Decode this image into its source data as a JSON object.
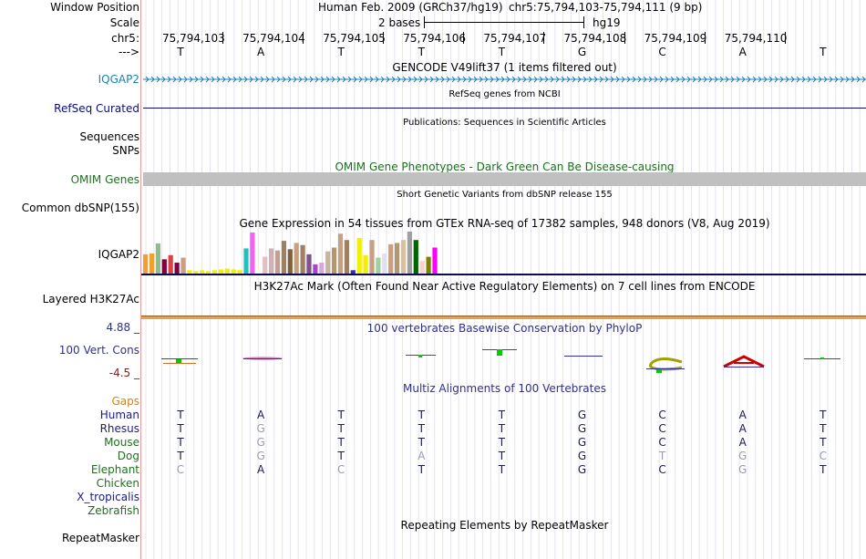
{
  "colors": {
    "conservation": "#2f2f8f",
    "omim": "#1f6f1f",
    "gene": "#1f80b0",
    "refseq": "#0c0c78",
    "bar_yellow": "#e6e600",
    "gaps": "#e08000",
    "mismatch": "#9a9ab8"
  },
  "labels": {
    "window_position": "Window Position",
    "scale": "Scale",
    "chr": "chr5:",
    "arrow": "--->",
    "iqgap2": "IQGAP2",
    "refseq": "RefSeq Curated",
    "sequences": "Sequences",
    "snps": "SNPs",
    "omim": "OMIM Genes",
    "dbsnp": "Common dbSNP(155)",
    "gtex": "IQGAP2",
    "h3k27ac": "Layered H3K27Ac",
    "cons_max": "4.88 _",
    "cons_name": "100 Vert. Cons",
    "cons_min": "-4.5 _",
    "gaps": "Gaps",
    "repeatmasker": "RepeatMasker"
  },
  "header": {
    "assembly": "Human Feb. 2009 (GRCh37/hg19)",
    "position": "chr5:75,794,103-75,794,111 (9 bp)",
    "scale_text": "2 bases",
    "scale_db": "hg19"
  },
  "coords": [
    "75,794,103",
    "75,794,104",
    "75,794,105",
    "75,794,106",
    "75,794,107",
    "75,794,108",
    "75,794,109",
    "75,794,110"
  ],
  "sequence": [
    "T",
    "A",
    "T",
    "T",
    "T",
    "G",
    "C",
    "A",
    "T"
  ],
  "track_titles": {
    "gencode": "GENCODE V49lift37 (1 items filtered out)",
    "refseq": "RefSeq genes from NCBI",
    "publications": "Publications: Sequences in Scientific Articles",
    "omim": "OMIM Gene Phenotypes - Dark Green Can Be Disease-causing",
    "dbsnp": "Short Genetic Variants from dbSNP release 155",
    "gtex": "Gene Expression in 54 tissues from GTEx RNA-seq of 17382 samples, 948 donors (V8, Aug 2019)",
    "h3k27ac": "H3K27Ac Mark (Often Found Near Active Regulatory Elements) on 7 cell lines from ENCODE",
    "phylop": "100 vertebrates Basewise Conservation by PhyloP",
    "multiz": "Multiz Alignments of 100 Vertebrates",
    "repeatmasker": "Repeating Elements by RepeatMasker"
  },
  "gtex_bars": [
    {
      "color": "#f0a030",
      "value": 0.46
    },
    {
      "color": "#f0a030",
      "value": 0.48
    },
    {
      "color": "#8fbc8f",
      "value": 0.72
    },
    {
      "color": "#800040",
      "value": 0.34
    },
    {
      "color": "#e04040",
      "value": 0.44
    },
    {
      "color": "#800040",
      "value": 0.26
    },
    {
      "color": "#c8a080",
      "value": 0.38
    },
    {
      "color": "#f0f000",
      "value": 0.08
    },
    {
      "color": "#f0f000",
      "value": 0.06
    },
    {
      "color": "#f0f000",
      "value": 0.08
    },
    {
      "color": "#f0f000",
      "value": 0.06
    },
    {
      "color": "#f0f000",
      "value": 0.08
    },
    {
      "color": "#f0f000",
      "value": 0.1
    },
    {
      "color": "#f0f000",
      "value": 0.12
    },
    {
      "color": "#f0f000",
      "value": 0.1
    },
    {
      "color": "#f0f000",
      "value": 0.08
    },
    {
      "color": "#20c0c0",
      "value": 0.6
    },
    {
      "color": "#ee66ee",
      "value": 0.98
    },
    {
      "color": "#f8f8f8",
      "value": 0.12
    },
    {
      "color": "#e0c0c0",
      "value": 0.4
    },
    {
      "color": "#d0b0b0",
      "value": 0.6
    },
    {
      "color": "#c0a090",
      "value": 0.55
    },
    {
      "color": "#a08060",
      "value": 0.78
    },
    {
      "color": "#806040",
      "value": 0.58
    },
    {
      "color": "#c8a080",
      "value": 0.73
    },
    {
      "color": "#a08060",
      "value": 0.68
    },
    {
      "color": "#805090",
      "value": 0.46
    },
    {
      "color": "#aa44cc",
      "value": 0.22
    },
    {
      "color": "#d8a8d8",
      "value": 0.26
    },
    {
      "color": "#c8b4a0",
      "value": 0.53
    },
    {
      "color": "#b09870",
      "value": 0.62
    },
    {
      "color": "#c8a080",
      "value": 0.95
    },
    {
      "color": "#a08060",
      "value": 0.8
    },
    {
      "color": "#3030b0",
      "value": 0.08
    },
    {
      "color": "#f0f000",
      "value": 0.85
    },
    {
      "color": "#f0f000",
      "value": 0.44
    },
    {
      "color": "#c8a080",
      "value": 0.8
    },
    {
      "color": "#a0d0a0",
      "value": 0.38
    },
    {
      "color": "#e0e0f0",
      "value": 0.48
    },
    {
      "color": "#c8a080",
      "value": 0.7
    },
    {
      "color": "#b09870",
      "value": 0.73
    },
    {
      "color": "#d8c0a0",
      "value": 0.8
    },
    {
      "color": "#a0a0a0",
      "value": 1.0
    },
    {
      "color": "#006400",
      "value": 0.8
    },
    {
      "color": "#ffcccc",
      "value": 0.3
    },
    {
      "color": "#808000",
      "value": 0.4
    },
    {
      "color": "#ff00ff",
      "value": 0.62
    }
  ],
  "species": [
    {
      "name": "Human",
      "color": "#1a1a8a"
    },
    {
      "name": "Rhesus",
      "color": "#1a1a8a"
    },
    {
      "name": "Mouse",
      "color": "#1f6f1f"
    },
    {
      "name": "Dog",
      "color": "#1f6f1f"
    },
    {
      "name": "Elephant",
      "color": "#1f6f1f"
    },
    {
      "name": "Chicken",
      "color": "#1f6f1f"
    },
    {
      "name": "X_tropicalis",
      "color": "#1a1a8a"
    },
    {
      "name": "Zebrafish",
      "color": "#1f6f1f"
    }
  ],
  "alignments": [
    [
      "T",
      "A",
      "T",
      "T",
      "T",
      "G",
      "C",
      "A",
      "T"
    ],
    [
      "T",
      "G",
      "T",
      "T",
      "T",
      "G",
      "C",
      "A",
      "T"
    ],
    [
      "T",
      "G",
      "T",
      "T",
      "T",
      "G",
      "C",
      "A",
      "T"
    ],
    [
      "T",
      "G",
      "T",
      "A",
      "T",
      "G",
      "T",
      "G",
      "C"
    ],
    [
      "C",
      "A",
      "C",
      "T",
      "T",
      "G",
      "C",
      "G",
      "T"
    ],
    [
      "",
      "",
      "",
      "",
      "",
      "",
      "",
      "",
      ""
    ],
    [
      "",
      "",
      "",
      "",
      "",
      "",
      "",
      "",
      ""
    ],
    [
      "",
      "",
      "",
      "",
      "",
      "",
      "",
      "",
      ""
    ]
  ],
  "mismatch": [
    [
      false,
      false,
      false,
      false,
      false,
      false,
      false,
      false,
      false
    ],
    [
      false,
      true,
      false,
      false,
      false,
      false,
      false,
      false,
      false
    ],
    [
      false,
      true,
      false,
      false,
      false,
      false,
      false,
      false,
      false
    ],
    [
      false,
      true,
      false,
      true,
      false,
      false,
      true,
      true,
      true
    ],
    [
      true,
      false,
      true,
      false,
      false,
      false,
      false,
      true,
      false
    ],
    [
      false,
      false,
      false,
      false,
      false,
      false,
      false,
      false,
      false
    ],
    [
      false,
      false,
      false,
      false,
      false,
      false,
      false,
      false,
      false
    ],
    [
      false,
      false,
      false,
      false,
      false,
      false,
      false,
      false,
      false
    ]
  ]
}
